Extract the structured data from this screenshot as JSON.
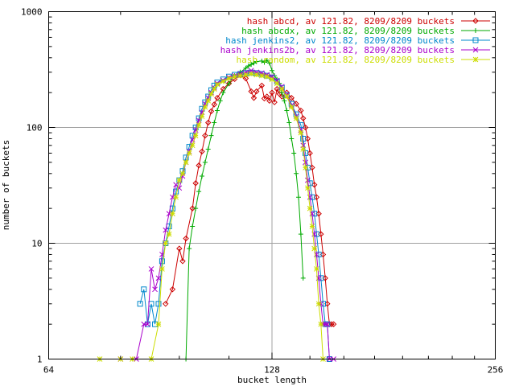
{
  "chart_data": {
    "type": "line",
    "title": "",
    "xlabel": "bucket length",
    "ylabel": "number of buckets",
    "x_scale": "log2",
    "y_scale": "log10",
    "xlim": [
      64,
      256
    ],
    "ylim": [
      1,
      1000
    ],
    "x_ticks": [
      "64",
      "128",
      "256"
    ],
    "y_ticks": [
      "1",
      "10",
      "100",
      "1000"
    ],
    "grid": true,
    "legend_position": "top-right",
    "series": [
      {
        "name": "hash abcd, av 121.82, 8209/8209 buckets",
        "color": "#cc0000",
        "marker": "diamond",
        "points": [
          [
            92,
            3
          ],
          [
            94,
            4
          ],
          [
            96,
            9
          ],
          [
            97,
            7
          ],
          [
            98,
            11
          ],
          [
            100,
            20
          ],
          [
            101,
            33
          ],
          [
            102,
            47
          ],
          [
            103,
            62
          ],
          [
            104,
            85
          ],
          [
            105,
            110
          ],
          [
            106,
            138
          ],
          [
            107,
            158
          ],
          [
            108,
            180
          ],
          [
            110,
            215
          ],
          [
            112,
            240
          ],
          [
            114,
            262
          ],
          [
            116,
            282
          ],
          [
            118,
            265
          ],
          [
            120,
            205
          ],
          [
            121,
            180
          ],
          [
            122,
            205
          ],
          [
            124,
            230
          ],
          [
            125,
            178
          ],
          [
            126,
            185
          ],
          [
            127,
            170
          ],
          [
            128,
            200
          ],
          [
            129,
            165
          ],
          [
            130,
            215
          ],
          [
            131,
            195
          ],
          [
            132,
            185
          ],
          [
            134,
            200
          ],
          [
            136,
            180
          ],
          [
            138,
            160
          ],
          [
            140,
            140
          ],
          [
            141,
            120
          ],
          [
            142,
            100
          ],
          [
            143,
            80
          ],
          [
            144,
            60
          ],
          [
            145,
            45
          ],
          [
            146,
            32
          ],
          [
            147,
            25
          ],
          [
            148,
            18
          ],
          [
            149,
            12
          ],
          [
            150,
            8
          ],
          [
            151,
            5
          ],
          [
            152,
            3
          ],
          [
            153,
            2
          ],
          [
            154,
            2
          ],
          [
            155,
            2
          ]
        ]
      },
      {
        "name": "hash abcdx, av 121.82, 8209/8209 buckets",
        "color": "#00aa00",
        "marker": "plus",
        "points": [
          [
            98,
            1
          ],
          [
            99,
            9
          ],
          [
            100,
            14
          ],
          [
            101,
            20
          ],
          [
            102,
            28
          ],
          [
            103,
            38
          ],
          [
            104,
            50
          ],
          [
            105,
            65
          ],
          [
            106,
            85
          ],
          [
            107,
            110
          ],
          [
            108,
            140
          ],
          [
            109,
            170
          ],
          [
            110,
            200
          ],
          [
            112,
            240
          ],
          [
            114,
            280
          ],
          [
            116,
            300
          ],
          [
            118,
            325
          ],
          [
            119,
            340
          ],
          [
            120,
            350
          ],
          [
            121,
            360
          ],
          [
            122,
            370
          ],
          [
            124,
            375
          ],
          [
            125,
            365
          ],
          [
            126,
            380
          ],
          [
            127,
            360
          ],
          [
            128,
            310
          ],
          [
            129,
            280
          ],
          [
            130,
            260
          ],
          [
            131,
            240
          ],
          [
            132,
            200
          ],
          [
            133,
            170
          ],
          [
            134,
            140
          ],
          [
            135,
            110
          ],
          [
            136,
            80
          ],
          [
            137,
            60
          ],
          [
            138,
            40
          ],
          [
            139,
            25
          ],
          [
            140,
            12
          ],
          [
            141,
            5
          ]
        ]
      },
      {
        "name": "hash jenkins2, av 121.82, 8209/8209 buckets",
        "color": "#0088cc",
        "marker": "square",
        "points": [
          [
            85,
            3
          ],
          [
            86,
            4
          ],
          [
            87,
            2
          ],
          [
            88,
            3
          ],
          [
            89,
            2
          ],
          [
            90,
            3
          ],
          [
            91,
            7
          ],
          [
            92,
            10
          ],
          [
            93,
            14
          ],
          [
            94,
            20
          ],
          [
            95,
            28
          ],
          [
            96,
            35
          ],
          [
            97,
            42
          ],
          [
            98,
            55
          ],
          [
            99,
            68
          ],
          [
            100,
            85
          ],
          [
            101,
            100
          ],
          [
            102,
            120
          ],
          [
            103,
            145
          ],
          [
            104,
            165
          ],
          [
            105,
            185
          ],
          [
            106,
            210
          ],
          [
            107,
            230
          ],
          [
            108,
            245
          ],
          [
            110,
            260
          ],
          [
            112,
            275
          ],
          [
            114,
            285
          ],
          [
            116,
            290
          ],
          [
            118,
            295
          ],
          [
            120,
            298
          ],
          [
            122,
            295
          ],
          [
            124,
            290
          ],
          [
            126,
            280
          ],
          [
            128,
            270
          ],
          [
            130,
            250
          ],
          [
            132,
            220
          ],
          [
            134,
            190
          ],
          [
            136,
            160
          ],
          [
            138,
            130
          ],
          [
            140,
            105
          ],
          [
            141,
            80
          ],
          [
            142,
            60
          ],
          [
            143,
            45
          ],
          [
            144,
            33
          ],
          [
            145,
            25
          ],
          [
            146,
            18
          ],
          [
            147,
            12
          ],
          [
            148,
            8
          ],
          [
            149,
            5
          ],
          [
            150,
            3
          ],
          [
            151,
            2
          ],
          [
            152,
            2
          ],
          [
            153,
            1
          ]
        ]
      },
      {
        "name": "hash jenkins2b, av 121.82, 8209/8209 buckets",
        "color": "#aa00cc",
        "marker": "cross",
        "points": [
          [
            80,
            1
          ],
          [
            84,
            1
          ],
          [
            86,
            2
          ],
          [
            87,
            2
          ],
          [
            88,
            6
          ],
          [
            89,
            4
          ],
          [
            90,
            5
          ],
          [
            91,
            8
          ],
          [
            92,
            13
          ],
          [
            93,
            18
          ],
          [
            94,
            25
          ],
          [
            95,
            32
          ],
          [
            96,
            30
          ],
          [
            97,
            38
          ],
          [
            98,
            50
          ],
          [
            99,
            62
          ],
          [
            100,
            78
          ],
          [
            101,
            95
          ],
          [
            102,
            115
          ],
          [
            103,
            135
          ],
          [
            104,
            160
          ],
          [
            105,
            180
          ],
          [
            106,
            200
          ],
          [
            107,
            220
          ],
          [
            108,
            240
          ],
          [
            110,
            255
          ],
          [
            112,
            270
          ],
          [
            114,
            280
          ],
          [
            116,
            290
          ],
          [
            118,
            300
          ],
          [
            120,
            310
          ],
          [
            122,
            300
          ],
          [
            124,
            295
          ],
          [
            126,
            285
          ],
          [
            128,
            275
          ],
          [
            130,
            255
          ],
          [
            132,
            225
          ],
          [
            134,
            190
          ],
          [
            136,
            155
          ],
          [
            138,
            125
          ],
          [
            140,
            95
          ],
          [
            141,
            70
          ],
          [
            142,
            50
          ],
          [
            143,
            35
          ],
          [
            144,
            25
          ],
          [
            145,
            18
          ],
          [
            146,
            12
          ],
          [
            147,
            8
          ],
          [
            148,
            5
          ],
          [
            149,
            3
          ],
          [
            150,
            2
          ],
          [
            151,
            2
          ],
          [
            152,
            2
          ],
          [
            153,
            1
          ],
          [
            155,
            1
          ]
        ]
      },
      {
        "name": "hash random, av 121.82, 8209/8209 buckets",
        "color": "#ccdd00",
        "marker": "star",
        "points": [
          [
            75,
            1
          ],
          [
            80,
            1
          ],
          [
            83,
            1
          ],
          [
            88,
            1
          ],
          [
            90,
            2
          ],
          [
            91,
            6
          ],
          [
            92,
            10
          ],
          [
            93,
            12
          ],
          [
            94,
            18
          ],
          [
            95,
            25
          ],
          [
            96,
            35
          ],
          [
            97,
            40
          ],
          [
            98,
            50
          ],
          [
            99,
            60
          ],
          [
            100,
            70
          ],
          [
            101,
            85
          ],
          [
            102,
            105
          ],
          [
            103,
            125
          ],
          [
            104,
            150
          ],
          [
            105,
            170
          ],
          [
            106,
            195
          ],
          [
            107,
            215
          ],
          [
            108,
            235
          ],
          [
            110,
            250
          ],
          [
            112,
            265
          ],
          [
            114,
            275
          ],
          [
            116,
            280
          ],
          [
            118,
            285
          ],
          [
            120,
            290
          ],
          [
            122,
            285
          ],
          [
            124,
            280
          ],
          [
            126,
            275
          ],
          [
            128,
            260
          ],
          [
            130,
            240
          ],
          [
            132,
            215
          ],
          [
            134,
            185
          ],
          [
            136,
            150
          ],
          [
            138,
            120
          ],
          [
            140,
            90
          ],
          [
            141,
            65
          ],
          [
            142,
            45
          ],
          [
            143,
            30
          ],
          [
            144,
            20
          ],
          [
            145,
            14
          ],
          [
            146,
            9
          ],
          [
            147,
            6
          ],
          [
            148,
            3
          ],
          [
            149,
            2
          ],
          [
            150,
            1
          ]
        ]
      }
    ]
  }
}
